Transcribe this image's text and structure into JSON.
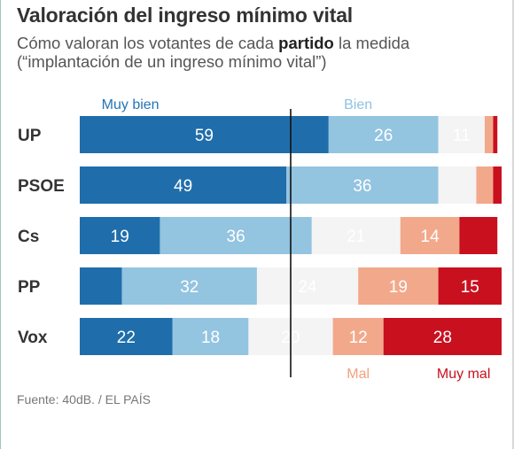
{
  "header": {
    "title": "Valoración del ingreso mínimo vital",
    "subtitle_pre": "Cómo valoran los votantes de cada ",
    "subtitle_bold": "partido",
    "subtitle_post": " la medida",
    "subtitle_line2": "(“implantación de un ingreso mínimo vital”)"
  },
  "source": "Fuente: 40dB. / EL PAÍS",
  "chart_data": {
    "type": "bar",
    "stacked": true,
    "orientation": "horizontal",
    "categories": [
      "UP",
      "PSOE",
      "Cs",
      "PP",
      "Vox"
    ],
    "series": [
      {
        "name": "Muy bien",
        "values": [
          59,
          49,
          19,
          10,
          22
        ],
        "color": "#1f6eab",
        "label_color": "#ffffff",
        "legend_color": "#2474b5",
        "show_labels": [
          true,
          true,
          true,
          false,
          true
        ]
      },
      {
        "name": "Bien",
        "values": [
          26,
          36,
          36,
          32,
          18
        ],
        "color": "#93c4e0",
        "label_color": "#ffffff",
        "legend_color": "#8ec3e2",
        "show_labels": [
          true,
          true,
          true,
          true,
          true
        ]
      },
      {
        "name": "",
        "values": [
          11,
          9,
          21,
          24,
          20
        ],
        "color": "#f4f4f4",
        "label_color": "#ffffff",
        "legend_color": "",
        "show_labels": [
          true,
          false,
          true,
          true,
          true
        ]
      },
      {
        "name": "Mal",
        "values": [
          2,
          4,
          14,
          19,
          12
        ],
        "color": "#f2a98b",
        "label_color": "#ffffff",
        "legend_color": "#f2a07e",
        "show_labels": [
          false,
          false,
          true,
          true,
          true
        ]
      },
      {
        "name": "Muy mal",
        "values": [
          1,
          2,
          9,
          15,
          28
        ],
        "color": "#c9101f",
        "label_color": "#ffffff",
        "legend_color": "#c9101f",
        "show_labels": [
          false,
          false,
          false,
          true,
          true
        ]
      }
    ],
    "xlim": [
      0,
      100
    ],
    "divider_at": 50,
    "legend_placement": "top-and-bottom"
  }
}
